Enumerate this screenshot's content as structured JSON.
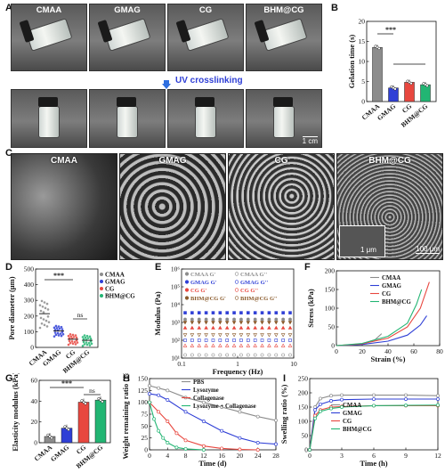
{
  "panel_letters": {
    "A": "A",
    "B": "B",
    "C": "C",
    "D": "D",
    "E": "E",
    "F": "F",
    "G": "G",
    "H": "H",
    "I": "I"
  },
  "panelA": {
    "samples": [
      "CMAA",
      "GMAG",
      "CG",
      "BHM@CG"
    ],
    "step_label": "UV crosslinking",
    "scale_bar": "1 cm"
  },
  "panelC": {
    "samples": [
      "CMAA",
      "GMAG",
      "CG",
      "BHM@CG"
    ],
    "inset_scale": "1 μm",
    "scale_bar": "100 μm"
  },
  "colors": {
    "CMAA": "#8c8c8c",
    "GMAG": "#2f3fd6",
    "CG": "#e8473f",
    "BHM@CG": "#22b573",
    "PBS": "#8c8c8c",
    "Lysozyme": "#2f3fd6",
    "Collagenase": "#e8473f",
    "Lysozyme + Collagenase": "#22b573"
  },
  "chart_data": [
    {
      "id": "B",
      "type": "bar",
      "ylabel": "Gelation time (s)",
      "categories": [
        "CMAA",
        "GMAG",
        "CG",
        "BHM@CG"
      ],
      "values": [
        13.5,
        3.4,
        4.8,
        4.2
      ],
      "ylim": [
        0,
        20
      ],
      "yticks": [
        "0",
        "5",
        "10",
        "15",
        "20"
      ],
      "significance": "***"
    },
    {
      "id": "D",
      "type": "scatter",
      "ylabel": "Pore diameter (μm)",
      "categories": [
        "CMAA",
        "GMAG",
        "CG",
        "BHM@CG"
      ],
      "means": [
        215,
        105,
        52,
        45
      ],
      "ylim": [
        0,
        500
      ],
      "yticks": [
        "0",
        "100",
        "200",
        "300",
        "400",
        "500"
      ],
      "legend": [
        "CMAA",
        "GMAG",
        "CG",
        "BHM@CG"
      ],
      "significance": [
        "***",
        "ns"
      ]
    },
    {
      "id": "E",
      "type": "scatter",
      "xlabel": "Frequency (Hz)",
      "ylabel": "Modulus (Pa)",
      "xticks": [
        "0.1",
        "1",
        "10"
      ],
      "yticks": [
        "10¹",
        "10²",
        "10³",
        "10⁴",
        "10⁵",
        "10⁶"
      ],
      "yscale": "log",
      "series": [
        {
          "name": "CMAA G'",
          "value": 1500
        },
        {
          "name": "CMAA G''",
          "value": 15
        },
        {
          "name": "GMAG G'",
          "value": 3500
        },
        {
          "name": "GMAG G''",
          "value": 100
        },
        {
          "name": "CG G'",
          "value": 500
        },
        {
          "name": "CG G''",
          "value": 50
        },
        {
          "name": "BHM@CG G'",
          "value": 1000
        },
        {
          "name": "BHM@CG G''",
          "value": 200
        }
      ]
    },
    {
      "id": "F",
      "type": "line",
      "xlabel": "Strain (%)",
      "ylabel": "Stress (kPa)",
      "xlim": [
        0,
        80
      ],
      "ylim": [
        0,
        200
      ],
      "xticks": [
        "0",
        "20",
        "40",
        "60",
        "80"
      ],
      "yticks": [
        "0",
        "50",
        "100",
        "150",
        "200"
      ],
      "series": [
        {
          "name": "CMAA",
          "x": [
            0,
            10,
            20,
            30,
            35
          ],
          "y": [
            0,
            1,
            5,
            16,
            32
          ]
        },
        {
          "name": "GMAG",
          "x": [
            0,
            20,
            40,
            55,
            65,
            70
          ],
          "y": [
            0,
            3,
            12,
            28,
            55,
            80
          ]
        },
        {
          "name": "CG",
          "x": [
            0,
            20,
            40,
            55,
            65,
            72
          ],
          "y": [
            0,
            5,
            20,
            50,
            100,
            170
          ]
        },
        {
          "name": "BHM@CG",
          "x": [
            0,
            20,
            40,
            55,
            62,
            66
          ],
          "y": [
            0,
            6,
            25,
            60,
            110,
            150
          ]
        }
      ]
    },
    {
      "id": "G",
      "type": "bar",
      "ylabel": "Elasticity modulus (kPa)",
      "categories": [
        "CMAA",
        "GMAG",
        "CG",
        "BHM@CG"
      ],
      "values": [
        6,
        14,
        39,
        41
      ],
      "ylim": [
        0,
        60
      ],
      "yticks": [
        "0",
        "20",
        "40",
        "60"
      ],
      "significance": [
        "***",
        "ns"
      ]
    },
    {
      "id": "H",
      "type": "line",
      "xlabel": "Time (d)",
      "ylabel": "Weight remaining ratio (%)",
      "xlim": [
        0,
        28
      ],
      "ylim": [
        0,
        150
      ],
      "xticks": [
        "0",
        "4",
        "8",
        "12",
        "16",
        "20",
        "24",
        "28"
      ],
      "yticks": [
        "0",
        "25",
        "50",
        "75",
        "100",
        "125",
        "150"
      ],
      "series": [
        {
          "name": "PBS",
          "x": [
            0,
            2,
            4,
            8,
            12,
            16,
            20,
            24,
            28
          ],
          "y": [
            135,
            130,
            125,
            110,
            100,
            90,
            80,
            70,
            62
          ]
        },
        {
          "name": "Lysozyme",
          "x": [
            0,
            2,
            4,
            8,
            12,
            16,
            20,
            24,
            28
          ],
          "y": [
            118,
            115,
            105,
            80,
            60,
            40,
            25,
            15,
            12
          ]
        },
        {
          "name": "Collagenase",
          "x": [
            0,
            2,
            4,
            6,
            8,
            12,
            16,
            20,
            24
          ],
          "y": [
            100,
            80,
            60,
            35,
            20,
            8,
            3,
            1,
            0
          ]
        },
        {
          "name": "Lysozyme + Collagenase",
          "x": [
            0,
            1,
            2,
            3,
            4,
            6,
            8,
            12
          ],
          "y": [
            100,
            65,
            40,
            25,
            15,
            5,
            2,
            0
          ]
        }
      ]
    },
    {
      "id": "I",
      "type": "line",
      "xlabel": "Time (h)",
      "ylabel": "Swelling ratio (%)",
      "xlim": [
        0,
        12
      ],
      "ylim": [
        0,
        250
      ],
      "xticks": [
        "0",
        "3",
        "6",
        "9",
        "12"
      ],
      "yticks": [
        "0",
        "50",
        "100",
        "150",
        "200",
        "250"
      ],
      "series": [
        {
          "name": "CMAA",
          "x": [
            0,
            0.5,
            1,
            2,
            3,
            6,
            9,
            12
          ],
          "y": [
            0,
            150,
            180,
            190,
            192,
            192,
            192,
            190
          ]
        },
        {
          "name": "GMAG",
          "x": [
            0,
            0.5,
            1,
            2,
            3,
            6,
            9,
            12
          ],
          "y": [
            0,
            140,
            160,
            172,
            176,
            178,
            178,
            178
          ]
        },
        {
          "name": "CG",
          "x": [
            0,
            0.5,
            1,
            2,
            3,
            6,
            9,
            12
          ],
          "y": [
            0,
            120,
            140,
            150,
            152,
            155,
            155,
            155
          ]
        },
        {
          "name": "BHM@CG",
          "x": [
            0,
            0.5,
            1,
            2,
            3,
            6,
            9,
            12
          ],
          "y": [
            0,
            110,
            135,
            145,
            150,
            155,
            156,
            157
          ]
        }
      ]
    }
  ]
}
